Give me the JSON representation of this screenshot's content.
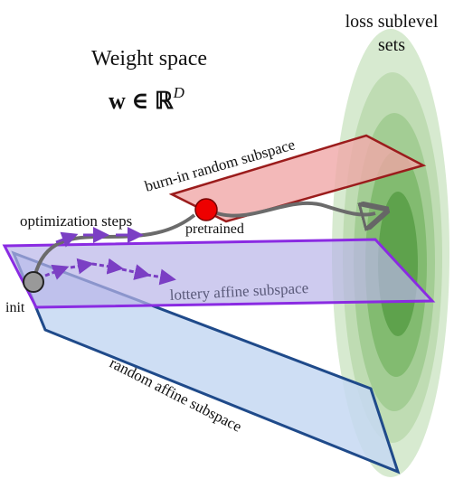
{
  "title": "Weight space",
  "formula": {
    "base": "w ∈ ℝ",
    "sup": "D"
  },
  "loss_label": [
    "loss sublevel",
    "sets"
  ],
  "labels": {
    "burn_in": "burn-in random subspace",
    "optimization": "optimization steps",
    "pretrained": "pretrained",
    "init": "init",
    "lottery": "lottery affine subspace",
    "random_affine": "random affine subspace"
  }
}
